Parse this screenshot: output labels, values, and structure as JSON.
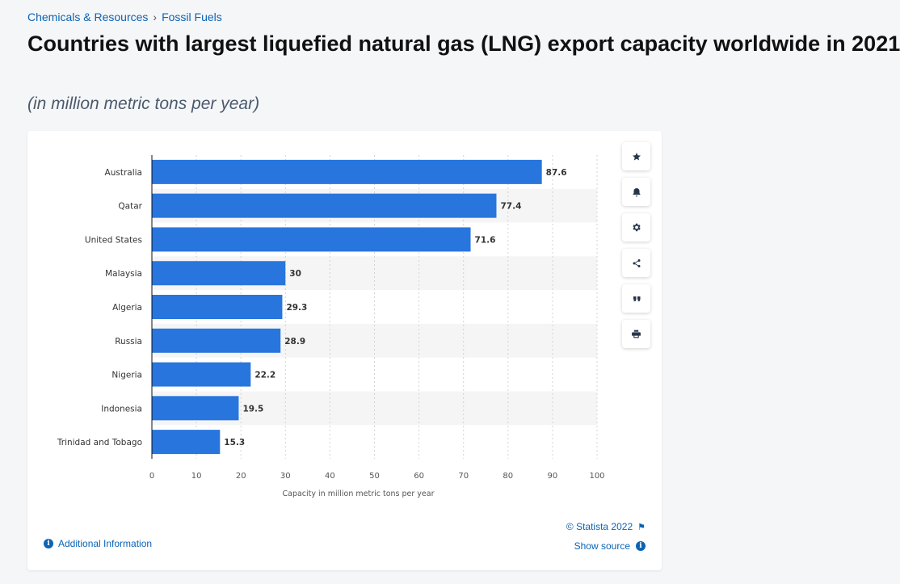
{
  "breadcrumb": {
    "parent": "Chemicals & Resources",
    "separator": "›",
    "current": "Fossil Fuels"
  },
  "header": {
    "title": "Countries with largest liquefied natural gas (LNG) export capacity worldwide in 2021",
    "subtitle": "(in million metric tons per year)"
  },
  "toolbar": {
    "icons": [
      "star-icon",
      "bell-icon",
      "gear-icon",
      "share-icon",
      "quote-icon",
      "print-icon"
    ]
  },
  "footer": {
    "additional_info": "Additional Information",
    "copyright": "© Statista 2022",
    "show_source": "Show source"
  },
  "colors": {
    "bar": "#2876dd",
    "link": "#0b63b5",
    "band": "#f5f5f5"
  },
  "chart_data": {
    "type": "bar",
    "orientation": "horizontal",
    "categories": [
      "Australia",
      "Qatar",
      "United States",
      "Malaysia",
      "Algeria",
      "Russia",
      "Nigeria",
      "Indonesia",
      "Trinidad and Tobago"
    ],
    "values": [
      87.6,
      77.4,
      71.6,
      30,
      29.3,
      28.9,
      22.2,
      19.5,
      15.3
    ],
    "value_labels": [
      "87.6",
      "77.4",
      "71.6",
      "30",
      "29.3",
      "28.9",
      "22.2",
      "19.5",
      "15.3"
    ],
    "xlabel": "Capacity in million metric tons per year",
    "ylabel": "",
    "xlim": [
      0,
      100
    ],
    "xticks": [
      "0",
      "10",
      "20",
      "30",
      "40",
      "50",
      "60",
      "70",
      "80",
      "90",
      "100"
    ],
    "grid": true,
    "legend": "none"
  }
}
